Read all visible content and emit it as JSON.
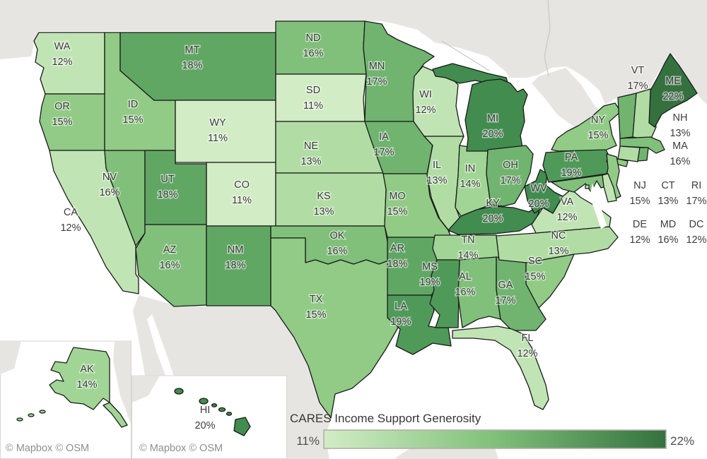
{
  "legend": {
    "title": "CARES Income Support Generosity",
    "min_label": "11%",
    "max_label": "22%",
    "min_value": 11,
    "max_value": 22
  },
  "attribution": {
    "text": "© Mapbox © OSM"
  },
  "color_scale": {
    "11": "#d2ecc6",
    "12": "#c1e4b4",
    "13": "#b1dda4",
    "14": "#a1d595",
    "15": "#91cb86",
    "16": "#80c07a",
    "17": "#70b46f",
    "18": "#60a764",
    "19": "#509a59",
    "20": "#418c4e",
    "21": "#3a7e47",
    "22": "#34713f"
  },
  "states_map": {
    "WA": {
      "label": "WA",
      "pct": "12%",
      "value": 12
    },
    "OR": {
      "label": "OR",
      "pct": "15%",
      "value": 15
    },
    "CA": {
      "label": "CA",
      "pct": "12%",
      "value": 12
    },
    "NV": {
      "label": "NV",
      "pct": "16%",
      "value": 16
    },
    "ID": {
      "label": "ID",
      "pct": "15%",
      "value": 15
    },
    "MT": {
      "label": "MT",
      "pct": "18%",
      "value": 18
    },
    "WY": {
      "label": "WY",
      "pct": "11%",
      "value": 11
    },
    "UT": {
      "label": "UT",
      "pct": "18%",
      "value": 18
    },
    "CO": {
      "label": "CO",
      "pct": "11%",
      "value": 11
    },
    "AZ": {
      "label": "AZ",
      "pct": "16%",
      "value": 16
    },
    "NM": {
      "label": "NM",
      "pct": "18%",
      "value": 18
    },
    "ND": {
      "label": "ND",
      "pct": "16%",
      "value": 16
    },
    "SD": {
      "label": "SD",
      "pct": "11%",
      "value": 11
    },
    "NE": {
      "label": "NE",
      "pct": "13%",
      "value": 13
    },
    "KS": {
      "label": "KS",
      "pct": "13%",
      "value": 13
    },
    "OK": {
      "label": "OK",
      "pct": "16%",
      "value": 16
    },
    "TX": {
      "label": "TX",
      "pct": "15%",
      "value": 15
    },
    "MN": {
      "label": "MN",
      "pct": "17%",
      "value": 17
    },
    "IA": {
      "label": "IA",
      "pct": "17%",
      "value": 17
    },
    "MO": {
      "label": "MO",
      "pct": "15%",
      "value": 15
    },
    "AR": {
      "label": "AR",
      "pct": "18%",
      "value": 18
    },
    "LA": {
      "label": "LA",
      "pct": "19%",
      "value": 19
    },
    "WI": {
      "label": "WI",
      "pct": "12%",
      "value": 12
    },
    "IL": {
      "label": "IL",
      "pct": "13%",
      "value": 13
    },
    "IN": {
      "label": "IN",
      "pct": "14%",
      "value": 14
    },
    "MI": {
      "label": "MI",
      "pct": "20%",
      "value": 20
    },
    "OH": {
      "label": "OH",
      "pct": "17%",
      "value": 17
    },
    "KY": {
      "label": "KY",
      "pct": "20%",
      "value": 20
    },
    "TN": {
      "label": "TN",
      "pct": "14%",
      "value": 14
    },
    "MS": {
      "label": "MS",
      "pct": "19%",
      "value": 19
    },
    "AL": {
      "label": "AL",
      "pct": "16%",
      "value": 16
    },
    "GA": {
      "label": "GA",
      "pct": "17%",
      "value": 17
    },
    "SC": {
      "label": "SC",
      "pct": "15%",
      "value": 15
    },
    "NC": {
      "label": "NC",
      "pct": "13%",
      "value": 13
    },
    "FL": {
      "label": "FL",
      "pct": "12%",
      "value": 12
    },
    "VA": {
      "label": "VA",
      "pct": "12%",
      "value": 12
    },
    "WV": {
      "label": "WV",
      "pct": "20%",
      "value": 20
    },
    "PA": {
      "label": "PA",
      "pct": "19%",
      "value": 19
    },
    "NY": {
      "label": "NY",
      "pct": "15%",
      "value": 15
    },
    "VT": {
      "label": "VT",
      "pct": "17%",
      "value": 17
    },
    "ME": {
      "label": "ME",
      "pct": "22%",
      "value": 22
    },
    "NH": {
      "label": "NH",
      "pct": "13%",
      "value": 13
    },
    "MA": {
      "label": "MA",
      "pct": "16%",
      "value": 16
    },
    "NJ": {
      "label": "NJ",
      "pct": "15%",
      "value": 15
    },
    "CT": {
      "label": "CT",
      "pct": "13%",
      "value": 13
    },
    "RI": {
      "label": "RI",
      "pct": "17%",
      "value": 17
    },
    "DE": {
      "label": "DE",
      "pct": "12%",
      "value": 12
    },
    "MD": {
      "label": "MD",
      "pct": "16%",
      "value": 16
    },
    "DC": {
      "label": "DC",
      "pct": "12%",
      "value": 12
    },
    "AK": {
      "label": "AK",
      "pct": "14%",
      "value": 14
    },
    "HI": {
      "label": "HI",
      "pct": "20%",
      "value": 20
    }
  }
}
